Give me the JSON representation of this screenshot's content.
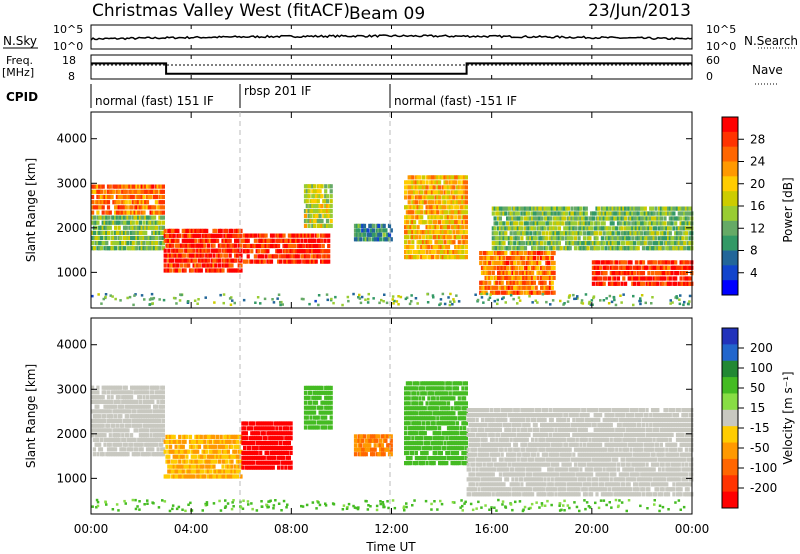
{
  "header": {
    "station": "Christmas Valley West (fitACF)",
    "beam": "Beam 09",
    "date": "23/Jun/2013"
  },
  "top_panels": {
    "nsky_label": "N.Sky",
    "nsearch_label": "N.Search",
    "nsky_ticks": [
      "10^5",
      "10^0"
    ],
    "nsearch_ticks": [
      "10^5",
      "10^0"
    ],
    "freq_label_1": "Freq.",
    "freq_label_2": "[MHz]",
    "freq_ticks": [
      "18",
      "8"
    ],
    "nave_label": "Nave",
    "nave_ticks": [
      "60",
      "0"
    ],
    "cpid_label": "CPID",
    "modes": [
      {
        "label": "normal (fast) 151 IF",
        "start": 0
      },
      {
        "label": "rbsp 201 IF",
        "start": 6
      },
      {
        "label": "normal (fast) -151 IF",
        "start": 12
      }
    ],
    "freq_series": [
      {
        "t": 0,
        "v": 14.5
      },
      {
        "t": 3,
        "v": 14.5
      },
      {
        "t": 3,
        "v": 10.2
      },
      {
        "t": 15,
        "v": 10.2
      },
      {
        "t": 15,
        "v": 14.5
      },
      {
        "t": 24,
        "v": 14.5
      }
    ]
  },
  "axes": {
    "xlabel": "Time UT",
    "xticks": [
      "00:00",
      "04:00",
      "08:00",
      "12:00",
      "16:00",
      "20:00",
      "00:00"
    ],
    "ylabel": "Slant Range [km]",
    "yticks": [
      "1000",
      "2000",
      "3000",
      "4000"
    ]
  },
  "power_colorbar": {
    "label": "Power [dB]",
    "ticks": [
      "28",
      "24",
      "20",
      "16",
      "12",
      "8",
      "4"
    ],
    "colors": [
      "#ff0000",
      "#ff3300",
      "#ff6600",
      "#ff9900",
      "#ffcc00",
      "#cccc00",
      "#99cc33",
      "#66aa66",
      "#339966",
      "#226699",
      "#1144cc",
      "#0000ff"
    ]
  },
  "velocity_colorbar": {
    "label": "Velocity [m s⁻¹]",
    "ticks": [
      "200",
      "100",
      "50",
      "15",
      "-15",
      "-50",
      "-100",
      "-200"
    ],
    "colors": [
      "#2233bb",
      "#2266cc",
      "#228833",
      "#44bb22",
      "#88dd44",
      "#c8c8c0",
      "#ffcc00",
      "#ff9900",
      "#ff6600",
      "#ff3300",
      "#ff0000"
    ]
  },
  "chart_data": {
    "type": "heatmap",
    "title": "Christmas Valley West (fitACF) Beam 09",
    "xlabel": "Time UT",
    "ylabel": "Slant Range [km]",
    "xlim": [
      0,
      24
    ],
    "ylim": [
      200,
      4600
    ],
    "power_regions": [
      {
        "t0": 0.0,
        "t1": 2.9,
        "r0": 2300,
        "r1": 3000,
        "power": 24
      },
      {
        "t0": 0.0,
        "t1": 2.9,
        "r0": 1500,
        "r1": 2300,
        "power": 12
      },
      {
        "t0": 2.9,
        "t1": 6.0,
        "r0": 1000,
        "r1": 2000,
        "power": 28
      },
      {
        "t0": 6.0,
        "t1": 9.5,
        "r0": 1200,
        "r1": 1900,
        "power": 28
      },
      {
        "t0": 8.5,
        "t1": 9.6,
        "r0": 2000,
        "r1": 3000,
        "power": 16
      },
      {
        "t0": 10.5,
        "t1": 12.0,
        "r0": 1700,
        "r1": 2100,
        "power": 8
      },
      {
        "t0": 12.5,
        "t1": 15.0,
        "r0": 1300,
        "r1": 3200,
        "power": 20
      },
      {
        "t0": 15.5,
        "t1": 18.5,
        "r0": 500,
        "r1": 1500,
        "power": 24
      },
      {
        "t0": 16.0,
        "t1": 24.0,
        "r0": 1500,
        "r1": 2500,
        "power": 12
      },
      {
        "t0": 20.0,
        "t1": 24.0,
        "r0": 700,
        "r1": 1300,
        "power": 28
      }
    ],
    "velocity_regions": [
      {
        "t0": 0.0,
        "t1": 2.9,
        "r0": 1500,
        "r1": 3100,
        "velocity": 0
      },
      {
        "t0": 2.9,
        "t1": 6.0,
        "r0": 1000,
        "r1": 2000,
        "velocity": -50
      },
      {
        "t0": 6.0,
        "t1": 8.0,
        "r0": 1200,
        "r1": 2300,
        "velocity": -200
      },
      {
        "t0": 8.5,
        "t1": 9.6,
        "r0": 2100,
        "r1": 3100,
        "velocity": 50
      },
      {
        "t0": 10.5,
        "t1": 12.0,
        "r0": 1500,
        "r1": 2000,
        "velocity": -100
      },
      {
        "t0": 12.5,
        "t1": 15.0,
        "r0": 1300,
        "r1": 3200,
        "velocity": 50
      },
      {
        "t0": 15.0,
        "t1": 24.0,
        "r0": 600,
        "r1": 2600,
        "velocity": 0
      }
    ]
  }
}
